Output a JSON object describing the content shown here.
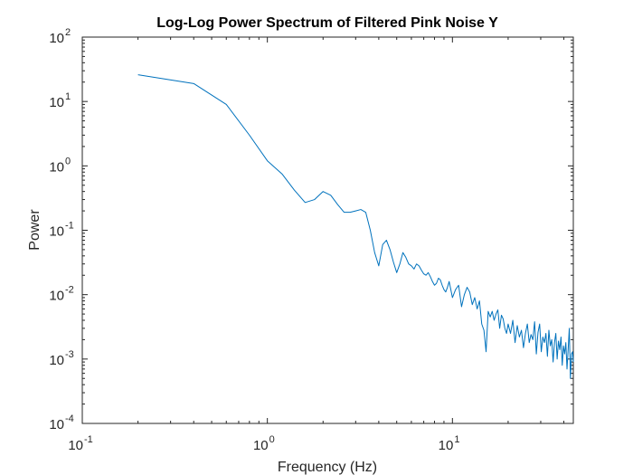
{
  "chart_data": {
    "type": "line",
    "title": "Log-Log Power Spectrum of Filtered Pink Noise Y",
    "xlabel": "Frequency (Hz)",
    "ylabel": "Power",
    "xscale": "log",
    "yscale": "log",
    "xlim": [
      0.1,
      45
    ],
    "ylim": [
      0.0001,
      100
    ],
    "grid": false,
    "line_color": "#0072BD",
    "x_ticks": [
      {
        "base": "10",
        "exp": "-1",
        "value": 0.1
      },
      {
        "base": "10",
        "exp": "0",
        "value": 1
      },
      {
        "base": "10",
        "exp": "1",
        "value": 10
      }
    ],
    "y_ticks": [
      {
        "base": "10",
        "exp": "-4",
        "value": 0.0001
      },
      {
        "base": "10",
        "exp": "-3",
        "value": 0.001
      },
      {
        "base": "10",
        "exp": "-2",
        "value": 0.01
      },
      {
        "base": "10",
        "exp": "-1",
        "value": 0.1
      },
      {
        "base": "10",
        "exp": "0",
        "value": 1
      },
      {
        "base": "10",
        "exp": "1",
        "value": 10
      },
      {
        "base": "10",
        "exp": "2",
        "value": 100
      }
    ],
    "series": [
      {
        "x": [
          0.2,
          0.4,
          0.6,
          0.8,
          1.0,
          1.2,
          1.4,
          1.6,
          1.8,
          2.0,
          2.2,
          2.4,
          2.6,
          2.8,
          3.0,
          3.2,
          3.4,
          3.6,
          3.8,
          4.0,
          4.2,
          4.4,
          4.6,
          4.8,
          5.0,
          5.2,
          5.4,
          5.6,
          5.8,
          6.0,
          6.2,
          6.4,
          6.6,
          6.8,
          7.0,
          7.2,
          7.4,
          7.6,
          7.8,
          8.0,
          8.2,
          8.4,
          8.6,
          8.8,
          9.0,
          9.2,
          9.4,
          9.6,
          9.8,
          10.0,
          10.4,
          10.8,
          11.2,
          11.6,
          12.0,
          12.4,
          12.8,
          13.2,
          13.6,
          14.0,
          14.4,
          14.8,
          15.2,
          15.6,
          16.0,
          16.4,
          16.8,
          17.2,
          17.6,
          18.0,
          18.4,
          18.8,
          19.2,
          19.6,
          20.0,
          20.6,
          21.2,
          21.8,
          22.4,
          23.0,
          23.6,
          24.2,
          24.8,
          25.4,
          26.0,
          26.6,
          27.2,
          27.8,
          28.4,
          29.0,
          29.6,
          30.2,
          30.8,
          31.4,
          32.0,
          32.6,
          33.2,
          33.8,
          34.4,
          35.0,
          35.6,
          36.2,
          36.8,
          37.4,
          38.0,
          38.6,
          39.2,
          39.8,
          40.4,
          41.0,
          41.6,
          42.2,
          42.8,
          43.4,
          44.0,
          44.6,
          45.0
        ],
        "y": [
          26,
          19,
          9,
          3,
          1.2,
          0.75,
          0.42,
          0.27,
          0.3,
          0.4,
          0.35,
          0.25,
          0.19,
          0.19,
          0.2,
          0.21,
          0.19,
          0.1,
          0.045,
          0.028,
          0.06,
          0.07,
          0.05,
          0.032,
          0.022,
          0.03,
          0.045,
          0.038,
          0.03,
          0.028,
          0.025,
          0.03,
          0.028,
          0.024,
          0.021,
          0.02,
          0.022,
          0.019,
          0.016,
          0.014,
          0.015,
          0.018,
          0.017,
          0.014,
          0.012,
          0.011,
          0.013,
          0.016,
          0.012,
          0.009,
          0.012,
          0.014,
          0.0065,
          0.01,
          0.013,
          0.011,
          0.007,
          0.009,
          0.006,
          0.008,
          0.0035,
          0.0028,
          0.0013,
          0.0055,
          0.0045,
          0.0055,
          0.004,
          0.005,
          0.0058,
          0.003,
          0.0048,
          0.0042,
          0.003,
          0.0025,
          0.0035,
          0.0025,
          0.004,
          0.0018,
          0.0033,
          0.0022,
          0.0028,
          0.0015,
          0.0025,
          0.0035,
          0.0018,
          0.0024,
          0.002,
          0.0038,
          0.0012,
          0.0026,
          0.0035,
          0.0013,
          0.0022,
          0.0018,
          0.0025,
          0.0011,
          0.0028,
          0.0016,
          0.002,
          0.0009,
          0.0018,
          0.0025,
          0.001,
          0.0019,
          0.0014,
          0.0022,
          0.0008,
          0.0016,
          0.0012,
          0.0018,
          0.0007,
          0.0014,
          0.003,
          0.0005,
          0.0012,
          0.0013,
          0.0009
        ]
      }
    ]
  }
}
